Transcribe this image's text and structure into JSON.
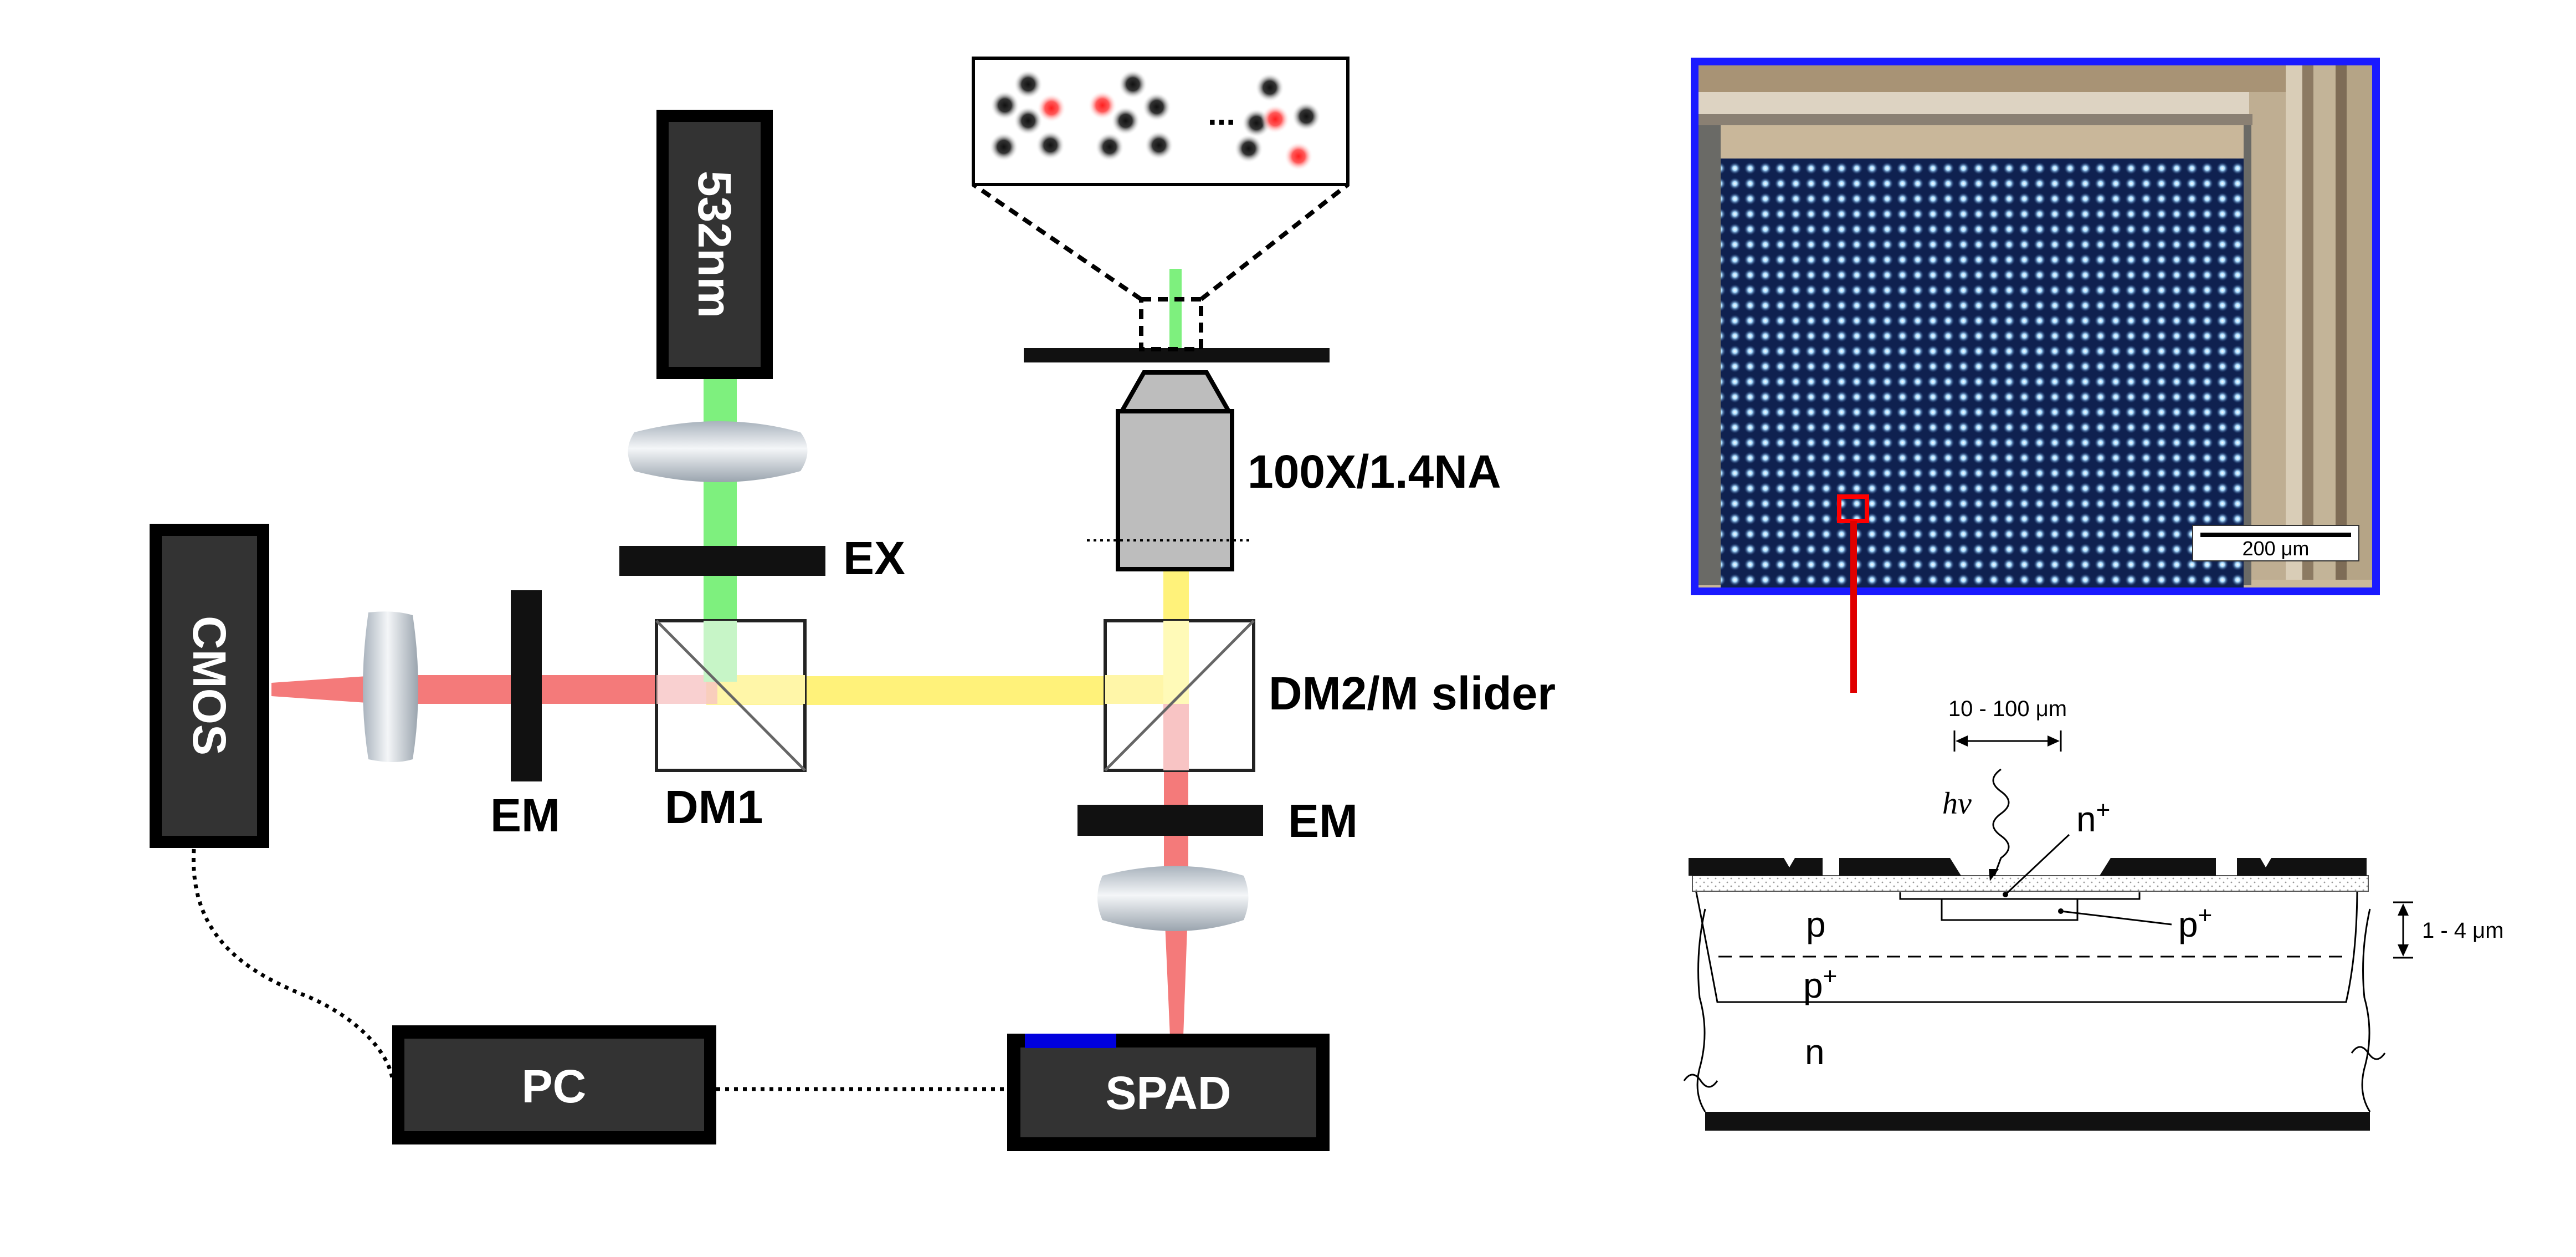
{
  "labels": {
    "laser": "532nm",
    "cmos": "CMOS",
    "pc": "PC",
    "spad": "SPAD",
    "ex": "EX",
    "em_left": "EM",
    "em_right": "EM",
    "dm1": "DM1",
    "dm2": "DM2/M slider",
    "objective": "100X/1.4NA",
    "ellipsis": "..."
  },
  "micrograph": {
    "scale_bar": "200 μm",
    "border_color": "#1a1aff",
    "pixel_color": "#9fd8ff"
  },
  "cross_section": {
    "width_dim": "10 - 100 μm",
    "depth_dim": "1 - 4 μm",
    "photon": "hν",
    "n_plus_base": "n",
    "p_plus_base": "p",
    "p_plus_lower_base": "p",
    "plus": "+",
    "p_region": "p",
    "n_region": "n"
  },
  "colors": {
    "green_beam": "#7ef07e",
    "yellow_beam": "#fff27a",
    "red_beam": "#f47a7a",
    "box_fill": "#333333",
    "spad_stripe": "#0000dd",
    "arrow": "#e00000"
  }
}
